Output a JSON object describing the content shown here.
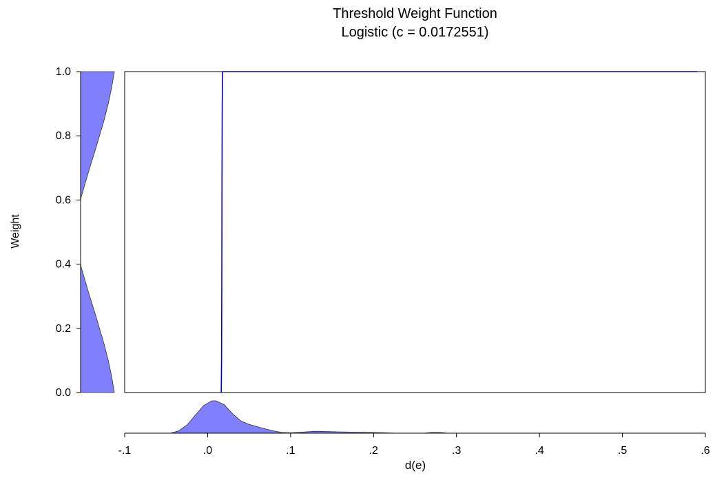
{
  "chart_data": {
    "type": "line",
    "title": "Threshold Weight Function",
    "subtitle": "Logistic (c = 0.0172551)",
    "xlabel": "d(e)",
    "ylabel": "Weight",
    "xlim": [
      -0.1,
      0.6
    ],
    "ylim": [
      0.0,
      1.0
    ],
    "x_ticks": [
      "-.1",
      ".0",
      ".1",
      ".2",
      ".3",
      ".4",
      ".5",
      ".6"
    ],
    "x_tick_values": [
      -0.1,
      0.0,
      0.1,
      0.2,
      0.3,
      0.4,
      0.5,
      0.6
    ],
    "y_ticks": [
      "0.0",
      "0.2",
      "0.4",
      "0.6",
      "0.8",
      "1.0"
    ],
    "y_tick_values": [
      0.0,
      0.2,
      0.4,
      0.6,
      0.8,
      1.0
    ],
    "grid": false,
    "series": [
      {
        "type": "line",
        "color": "#0000c0",
        "x": [
          0.0164,
          0.0168,
          0.0171,
          0.0173,
          0.0176,
          0.0181,
          0.59
        ],
        "y": [
          0.0,
          0.1,
          0.35,
          0.65,
          0.9,
          1.0,
          1.0
        ]
      }
    ],
    "x_marginal_density": {
      "type": "area",
      "color": "#8080ff",
      "x": [
        -0.045,
        -0.035,
        -0.025,
        -0.015,
        -0.005,
        0.005,
        0.01,
        0.02,
        0.03,
        0.04,
        0.05,
        0.06,
        0.07,
        0.08,
        0.09,
        0.1,
        0.13,
        0.16,
        0.2,
        0.23
      ],
      "density": [
        0.0,
        0.07,
        0.25,
        0.55,
        0.85,
        1.0,
        1.0,
        0.88,
        0.6,
        0.38,
        0.27,
        0.2,
        0.13,
        0.07,
        0.02,
        0.01,
        0.06,
        0.04,
        0.02,
        0.0
      ],
      "x2": [
        0.26,
        0.27,
        0.28,
        0.29
      ],
      "density2": [
        0.0,
        0.02,
        0.02,
        0.0
      ]
    },
    "y_marginal_density": {
      "type": "area",
      "color": "#8080ff",
      "y": [
        0.0,
        0.05,
        0.1,
        0.15,
        0.2,
        0.25,
        0.3,
        0.35,
        0.39,
        0.4,
        0.6,
        0.61,
        0.65,
        0.7,
        0.75,
        0.8,
        0.85,
        0.9,
        0.95,
        1.0
      ],
      "density": [
        1.0,
        0.92,
        0.82,
        0.7,
        0.56,
        0.42,
        0.27,
        0.13,
        0.02,
        0.0,
        0.0,
        0.02,
        0.13,
        0.27,
        0.42,
        0.56,
        0.7,
        0.82,
        0.92,
        1.0
      ]
    }
  }
}
